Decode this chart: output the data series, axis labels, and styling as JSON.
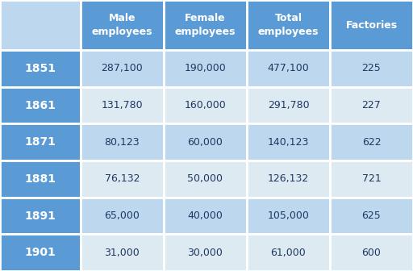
{
  "years": [
    "1851",
    "1861",
    "1871",
    "1881",
    "1891",
    "1901"
  ],
  "columns": [
    "Male\nemployees",
    "Female\nemployees",
    "Total\nemployees",
    "Factories"
  ],
  "values": [
    [
      "287,100",
      "190,000",
      "477,100",
      "225"
    ],
    [
      "131,780",
      "160,000",
      "291,780",
      "227"
    ],
    [
      "80,123",
      "60,000",
      "140,123",
      "622"
    ],
    [
      "76,132",
      "50,000",
      "126,132",
      "721"
    ],
    [
      "65,000",
      "40,000",
      "105,000",
      "625"
    ],
    [
      "31,000",
      "30,000",
      "61,000",
      "600"
    ]
  ],
  "header_bg": "#5B9BD5",
  "header_text": "#FFFFFF",
  "year_bg": "#5B9BD5",
  "year_text": "#FFFFFF",
  "topleft_bg": "#BDD7EE",
  "row_bg_alt1": "#BDD7EE",
  "row_bg_alt2": "#DEEAF1",
  "cell_text": "#1F3864",
  "border_color": "#FFFFFF",
  "fig_bg": "#BDD7EE"
}
